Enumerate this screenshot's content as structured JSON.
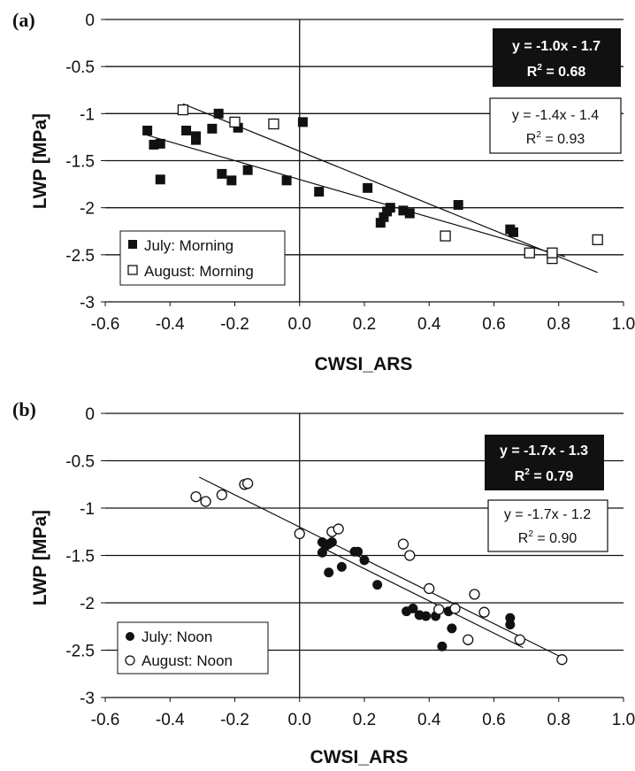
{
  "chart_data": [
    {
      "type": "scatter",
      "panel_label": "(a)",
      "xlabel": "CWSI_ARS",
      "ylabel": "LWP [MPa]",
      "xlim": [
        -0.6,
        1.0
      ],
      "ylim": [
        -3,
        0
      ],
      "x_ticks": [
        "-0.6",
        "-0.4",
        "-0.2",
        "0.0",
        "0.2",
        "0.4",
        "0.6",
        "0.8",
        "1.0"
      ],
      "y_ticks": [
        "0",
        "-0.5",
        "-1",
        "-1.5",
        "-2",
        "-2.5",
        "-3"
      ],
      "grid": "horizontal",
      "legend_position": "bottom-left",
      "series": [
        {
          "name": "July: Morning",
          "marker": "filled-square",
          "color": "#111111",
          "points": [
            [
              -0.47,
              -1.18
            ],
            [
              -0.45,
              -1.33
            ],
            [
              -0.43,
              -1.32
            ],
            [
              -0.43,
              -1.7
            ],
            [
              -0.35,
              -1.18
            ],
            [
              -0.32,
              -1.28
            ],
            [
              -0.32,
              -1.24
            ],
            [
              -0.27,
              -1.16
            ],
            [
              -0.25,
              -1.0
            ],
            [
              -0.24,
              -1.64
            ],
            [
              -0.21,
              -1.71
            ],
            [
              -0.19,
              -1.15
            ],
            [
              -0.16,
              -1.6
            ],
            [
              -0.04,
              -1.71
            ],
            [
              0.01,
              -1.09
            ],
            [
              0.06,
              -1.83
            ],
            [
              0.21,
              -1.79
            ],
            [
              0.25,
              -2.16
            ],
            [
              0.26,
              -2.1
            ],
            [
              0.27,
              -2.04
            ],
            [
              0.28,
              -2.0
            ],
            [
              0.32,
              -2.03
            ],
            [
              0.34,
              -2.06
            ],
            [
              0.49,
              -1.97
            ],
            [
              0.65,
              -2.23
            ],
            [
              0.66,
              -2.26
            ]
          ],
          "fit": {
            "slope": -1.0,
            "intercept": -1.7,
            "x_range": [
              -0.47,
              0.82
            ]
          }
        },
        {
          "name": "August: Morning",
          "marker": "open-square",
          "color": "#111111",
          "points": [
            [
              -0.36,
              -0.96
            ],
            [
              -0.2,
              -1.09
            ],
            [
              -0.08,
              -1.11
            ],
            [
              0.45,
              -2.3
            ],
            [
              0.71,
              -2.48
            ],
            [
              0.78,
              -2.54
            ],
            [
              0.78,
              -2.48
            ],
            [
              0.92,
              -2.34
            ]
          ],
          "fit": {
            "slope": -1.4,
            "intercept": -1.4,
            "x_range": [
              -0.36,
              0.92
            ]
          }
        }
      ],
      "annotations": [
        {
          "style": "inverted",
          "line1": "y = -1.0x - 1.7",
          "line2_main": "R",
          "line2_sup": "2",
          "line2_rest": " = 0.68"
        },
        {
          "style": "outlined",
          "line1": "y = -1.4x - 1.4",
          "line2_main": "R",
          "line2_sup": "2",
          "line2_rest": " = 0.93"
        }
      ]
    },
    {
      "type": "scatter",
      "panel_label": "(b)",
      "xlabel": "CWSI_ARS",
      "ylabel": "LWP [MPa]",
      "xlim": [
        -0.6,
        1.0
      ],
      "ylim": [
        -3,
        0
      ],
      "x_ticks": [
        "-0.6",
        "-0.4",
        "-0.2",
        "0.0",
        "0.2",
        "0.4",
        "0.6",
        "0.8",
        "1.0"
      ],
      "y_ticks": [
        "0",
        "-0.5",
        "-1",
        "-1.5",
        "-2",
        "-2.5",
        "-3"
      ],
      "grid": "horizontal",
      "legend_position": "bottom-left",
      "series": [
        {
          "name": "July: Noon",
          "marker": "filled-circle",
          "color": "#111111",
          "points": [
            [
              0.07,
              -1.36
            ],
            [
              0.07,
              -1.47
            ],
            [
              0.08,
              -1.4
            ],
            [
              0.09,
              -1.38
            ],
            [
              0.09,
              -1.68
            ],
            [
              0.1,
              -1.36
            ],
            [
              0.13,
              -1.62
            ],
            [
              0.17,
              -1.46
            ],
            [
              0.18,
              -1.46
            ],
            [
              0.2,
              -1.55
            ],
            [
              0.24,
              -1.81
            ],
            [
              0.33,
              -2.09
            ],
            [
              0.35,
              -2.06
            ],
            [
              0.37,
              -2.13
            ],
            [
              0.39,
              -2.14
            ],
            [
              0.42,
              -2.14
            ],
            [
              0.44,
              -2.46
            ],
            [
              0.46,
              -2.09
            ],
            [
              0.47,
              -2.27
            ],
            [
              0.65,
              -2.16
            ],
            [
              0.65,
              -2.23
            ]
          ],
          "fit": {
            "slope": -1.7,
            "intercept": -1.3,
            "x_range": [
              0.07,
              0.69
            ]
          }
        },
        {
          "name": "August: Noon",
          "marker": "open-circle",
          "color": "#111111",
          "points": [
            [
              -0.32,
              -0.88
            ],
            [
              -0.29,
              -0.93
            ],
            [
              -0.24,
              -0.86
            ],
            [
              -0.17,
              -0.75
            ],
            [
              -0.16,
              -0.74
            ],
            [
              0.0,
              -1.27
            ],
            [
              0.1,
              -1.25
            ],
            [
              0.12,
              -1.22
            ],
            [
              0.32,
              -1.38
            ],
            [
              0.34,
              -1.5
            ],
            [
              0.4,
              -1.85
            ],
            [
              0.43,
              -2.07
            ],
            [
              0.48,
              -2.06
            ],
            [
              0.52,
              -2.39
            ],
            [
              0.54,
              -1.91
            ],
            [
              0.57,
              -2.1
            ],
            [
              0.68,
              -2.39
            ],
            [
              0.81,
              -2.6
            ]
          ],
          "fit": {
            "slope": -1.7,
            "intercept": -1.2,
            "x_range": [
              -0.31,
              0.81
            ]
          }
        }
      ],
      "annotations": [
        {
          "style": "inverted",
          "line1": "y = -1.7x - 1.3",
          "line2_main": "R",
          "line2_sup": "2",
          "line2_rest": " = 0.79"
        },
        {
          "style": "outlined",
          "line1": "y = -1.7x - 1.2",
          "line2_main": "R",
          "line2_sup": "2",
          "line2_rest": " = 0.90"
        }
      ]
    }
  ]
}
